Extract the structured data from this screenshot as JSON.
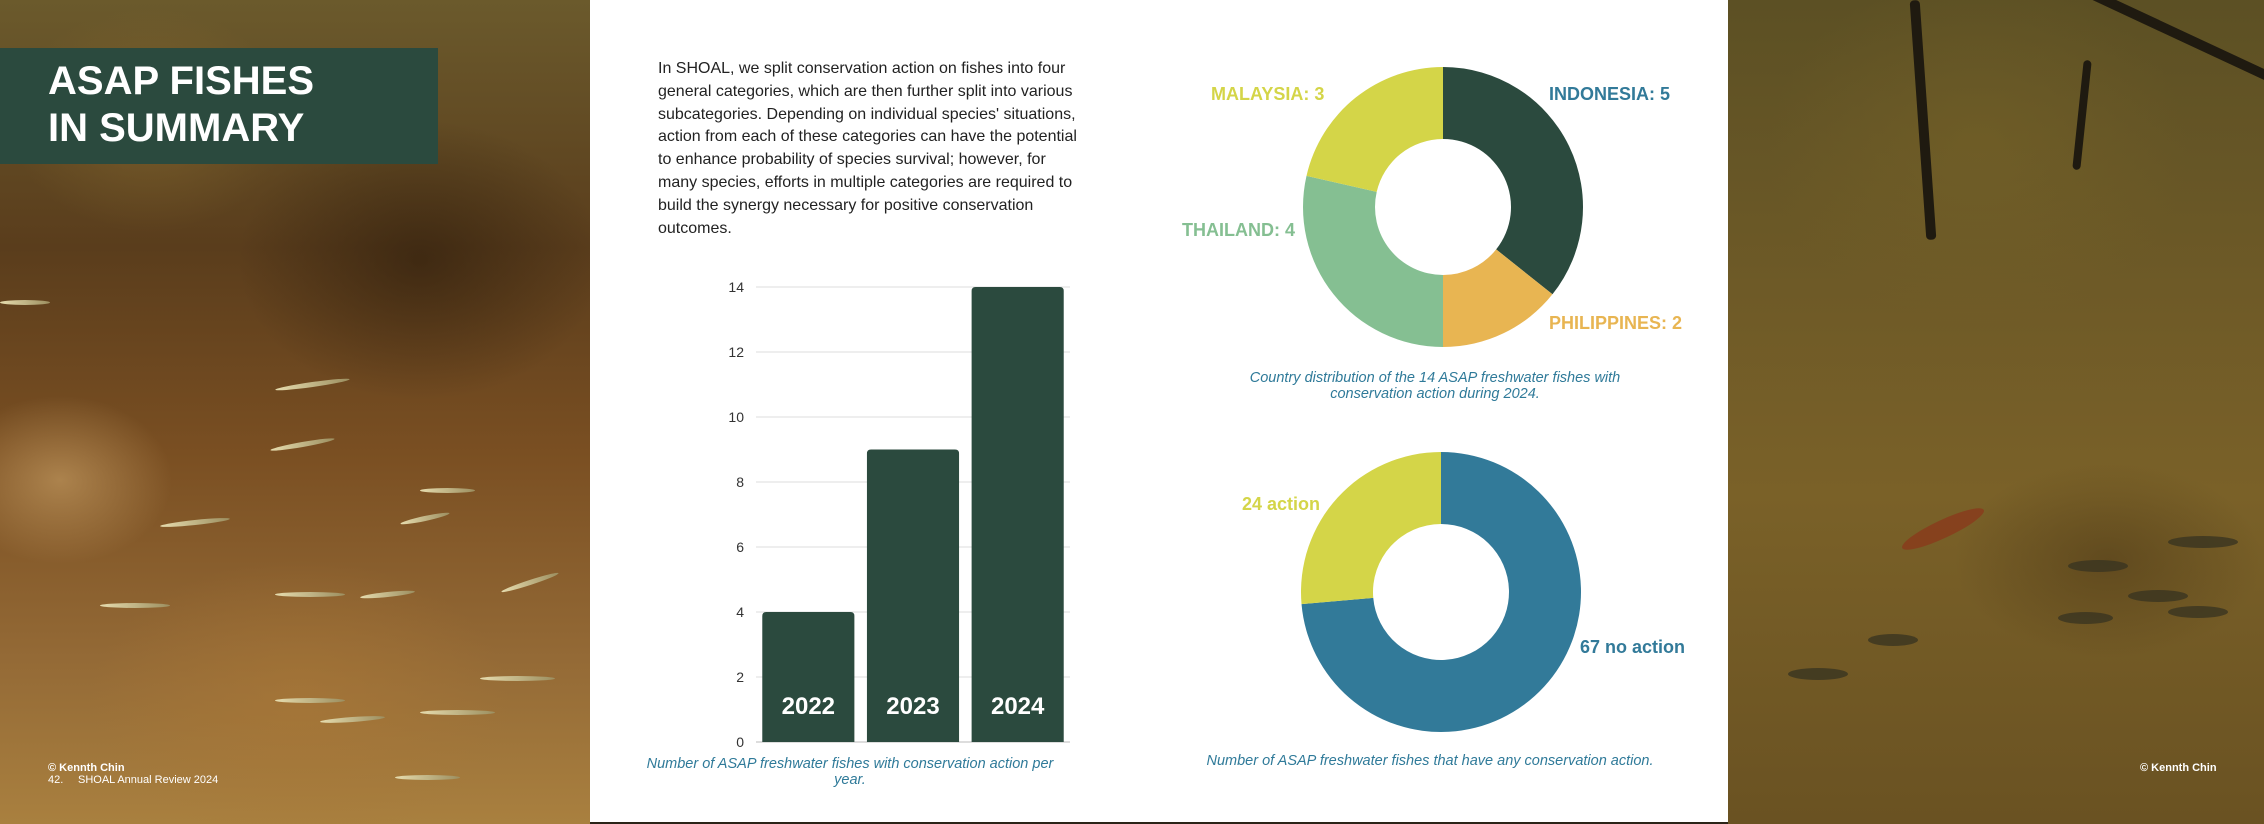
{
  "title": {
    "line1": "ASAP FISHES",
    "line2": "IN SUMMARY"
  },
  "intro_text": "In SHOAL, we split conservation action on fishes into four general categories, which are then further split into various subcategories. Depending on individual species' situations, action from each of these categories can have the potential to enhance probability of species survival; however, for many species, efforts in multiple categories are required to build the synergy necessary for positive conservation outcomes.",
  "footer": {
    "photo_credit_left": "© Kennth Chin",
    "page_number": "42.",
    "publication": "SHOAL Annual Review 2024",
    "photo_credit_right": "© Kennth Chin"
  },
  "colors": {
    "dark_green": "#2b4a3e",
    "teal_blue": "#327a99",
    "yellow_green": "#d4d548",
    "light_green": "#85bf92",
    "gold": "#e8b552"
  },
  "chart_data": [
    {
      "type": "bar",
      "categories": [
        "2022",
        "2023",
        "2024"
      ],
      "values": [
        4,
        9,
        14
      ],
      "ylim": [
        0,
        14
      ],
      "yticks": [
        0,
        2,
        4,
        6,
        8,
        10,
        12,
        14
      ],
      "caption": "Number of ASAP freshwater fishes with conservation action per year.",
      "grid": true
    },
    {
      "type": "pie",
      "donut": true,
      "labels": [
        "INDONESIA: 5",
        "PHILIPPINES: 2",
        "THAILAND: 4",
        "MALAYSIA: 3"
      ],
      "values": [
        5,
        2,
        4,
        3
      ],
      "colors": [
        "#2b4a3e",
        "#e8b552",
        "#85bf92",
        "#d4d548"
      ],
      "caption": "Country distribution of the 14 ASAP freshwater fishes with conservation action during 2024."
    },
    {
      "type": "pie",
      "donut": true,
      "labels": [
        "67 no action",
        "24 action"
      ],
      "values": [
        67,
        24
      ],
      "colors": [
        "#327a99",
        "#d4d548"
      ],
      "caption": "Number of ASAP freshwater fishes that have any conservation action."
    }
  ]
}
